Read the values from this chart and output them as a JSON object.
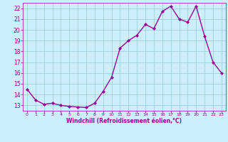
{
  "x": [
    0,
    1,
    2,
    3,
    4,
    5,
    6,
    7,
    8,
    9,
    10,
    11,
    12,
    13,
    14,
    15,
    16,
    17,
    18,
    19,
    20,
    21,
    22,
    23
  ],
  "y": [
    14.5,
    13.5,
    13.1,
    13.2,
    13.0,
    12.9,
    12.85,
    12.8,
    13.2,
    14.3,
    15.6,
    18.3,
    19.0,
    19.5,
    20.5,
    20.1,
    21.7,
    22.2,
    21.0,
    20.7,
    22.2,
    19.4,
    17.0,
    16.0
  ],
  "line_color": "#990099",
  "marker": "D",
  "marker_size": 2.0,
  "bg_color": "#cceeff",
  "grid_color": "#99cccc",
  "xlabel": "Windchill (Refroidissement éolien,°C)",
  "xlabel_color": "#990099",
  "tick_color": "#990099",
  "ylim": [
    12.5,
    22.5
  ],
  "yticks": [
    13,
    14,
    15,
    16,
    17,
    18,
    19,
    20,
    21,
    22
  ],
  "xlim": [
    -0.5,
    23.5
  ],
  "xticks": [
    0,
    1,
    2,
    3,
    4,
    5,
    6,
    7,
    8,
    9,
    10,
    11,
    12,
    13,
    14,
    15,
    16,
    17,
    18,
    19,
    20,
    21,
    22,
    23
  ],
  "line_width": 1.0,
  "fig_bg": "#cceeff"
}
